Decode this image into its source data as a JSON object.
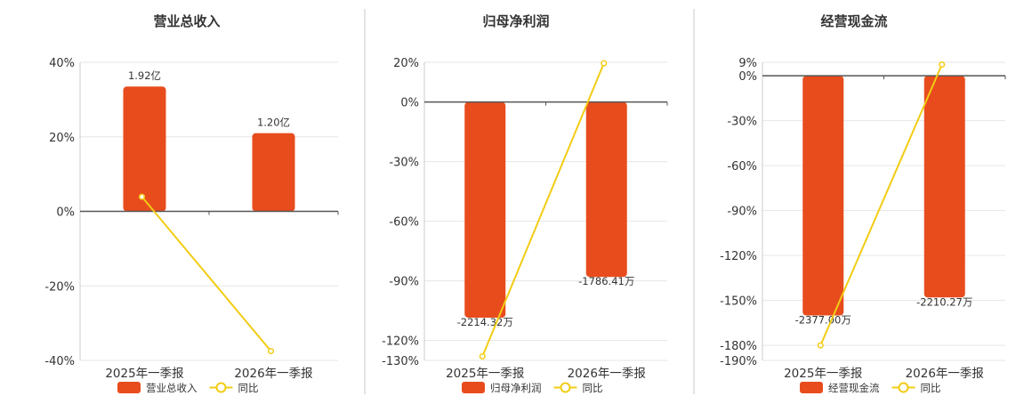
{
  "chart_data": [
    {
      "type": "bar",
      "title": "营业总收入",
      "categories": [
        "2025年一季报",
        "2026年一季报"
      ],
      "ylim": [
        -40,
        40
      ],
      "yticks": [
        "40%",
        "20%",
        "0%",
        "-20%",
        "-40%"
      ],
      "series": [
        {
          "name": "营业总收入",
          "type": "bar",
          "values": [
            33.5,
            21.0
          ],
          "labels": [
            "1.92亿",
            "1.20亿"
          ]
        },
        {
          "name": "同比",
          "type": "line",
          "values": [
            3.9,
            -37.5
          ]
        }
      ],
      "legend": "bottom",
      "colors": {
        "bar": "#e84c1d",
        "line": "#f2cc14"
      }
    },
    {
      "type": "bar",
      "title": "归母净利润",
      "categories": [
        "2025年一季报",
        "2026年一季报"
      ],
      "ylim": [
        -130,
        20
      ],
      "yticks": [
        "20%",
        "0%",
        "-30%",
        "-60%",
        "-90%",
        "-120%",
        "-130%"
      ],
      "series": [
        {
          "name": "归母净利润",
          "type": "bar",
          "values": [
            -108.5,
            -88.0
          ],
          "labels": [
            "-2214.32万",
            "-1786.41万"
          ]
        },
        {
          "name": "同比",
          "type": "line",
          "values": [
            -128.0,
            19.5
          ]
        }
      ],
      "legend": "bottom",
      "colors": {
        "bar": "#e84c1d",
        "line": "#f2cc14"
      }
    },
    {
      "type": "bar",
      "title": "经营现金流",
      "categories": [
        "2025年一季报",
        "2026年一季报"
      ],
      "ylim": [
        -190,
        9
      ],
      "yticks": [
        "9%",
        "0%",
        "-30%",
        "-60%",
        "-90%",
        "-120%",
        "-150%",
        "-180%",
        "-190%"
      ],
      "series": [
        {
          "name": "经营现金流",
          "type": "bar",
          "values": [
            -160.0,
            -148.0
          ],
          "labels": [
            "-2377.00万",
            "-2210.27万"
          ]
        },
        {
          "name": "同比",
          "type": "line",
          "values": [
            -180.0,
            7.5
          ]
        }
      ],
      "legend": "bottom",
      "colors": {
        "bar": "#e84c1d",
        "line": "#f2cc14"
      }
    }
  ]
}
